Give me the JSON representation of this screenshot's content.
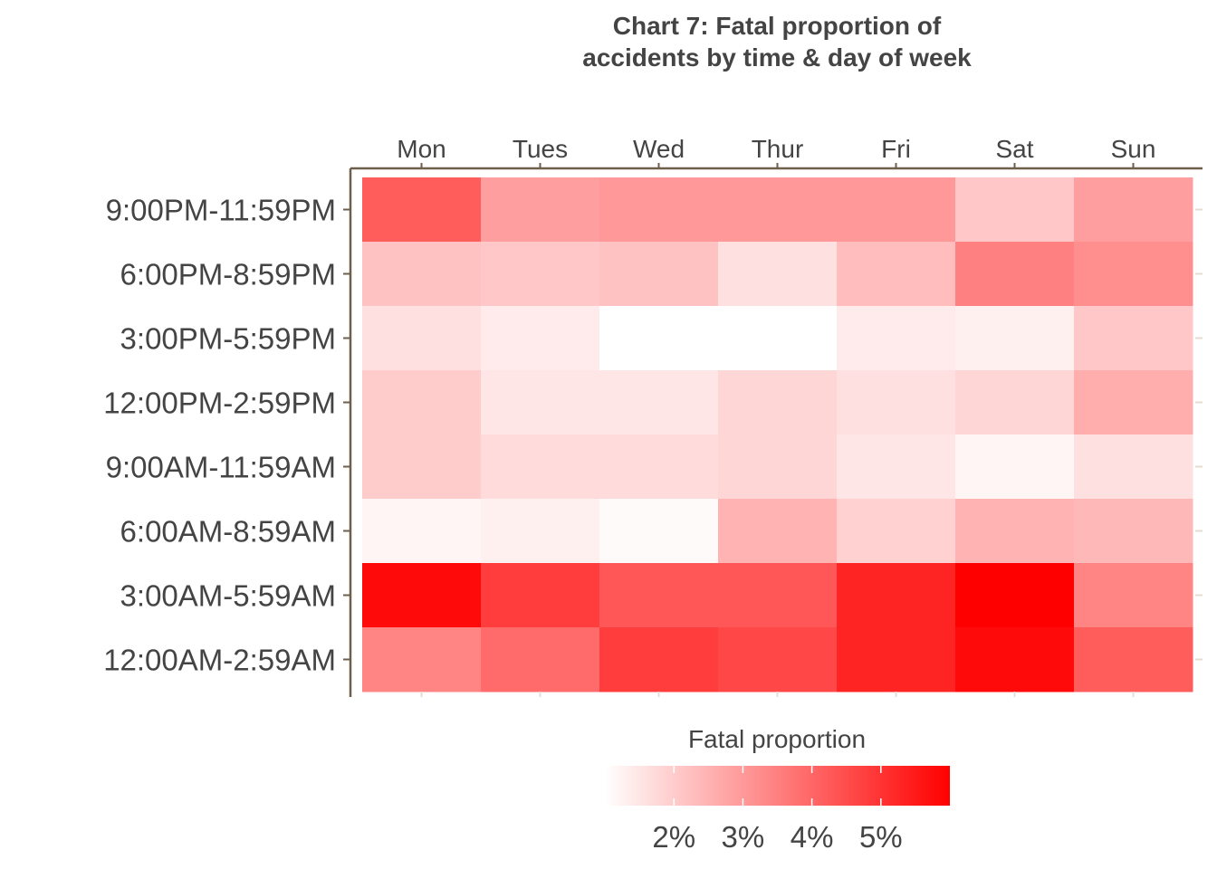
{
  "chart_data": {
    "type": "heatmap",
    "title_lines": [
      "Chart 7: Fatal proportion of",
      "accidents by time & day of week"
    ],
    "xlabel": "",
    "ylabel": "",
    "x_categories": [
      "Mon",
      "Tues",
      "Wed",
      "Thur",
      "Fri",
      "Sat",
      "Sun"
    ],
    "y_categories": [
      "9:00PM-11:59PM",
      "6:00PM-8:59PM",
      "3:00PM-5:59PM",
      "12:00PM-2:59PM",
      "9:00AM-11:59AM",
      "6:00AM-8:59AM",
      "3:00AM-5:59AM",
      "12:00AM-2:59AM"
    ],
    "values": [
      [
        4.2,
        2.9,
        3.0,
        3.0,
        3.0,
        2.1,
        2.9
      ],
      [
        2.2,
        2.1,
        2.2,
        1.6,
        2.3,
        3.5,
        3.2
      ],
      [
        1.6,
        1.4,
        1.0,
        1.0,
        1.4,
        1.3,
        2.1
      ],
      [
        2.0,
        1.5,
        1.5,
        1.8,
        1.6,
        1.8,
        2.6
      ],
      [
        2.0,
        1.7,
        1.7,
        1.8,
        1.5,
        1.2,
        1.6
      ],
      [
        1.2,
        1.3,
        1.1,
        2.5,
        1.9,
        2.5,
        2.4
      ],
      [
        5.8,
        4.8,
        4.3,
        4.3,
        5.3,
        6.0,
        3.4
      ],
      [
        3.4,
        3.9,
        4.8,
        4.6,
        5.3,
        5.8,
        4.2
      ]
    ],
    "color_scale": {
      "low": "#ffffff",
      "high": "#ff0000",
      "min": 1.0,
      "max": 6.0
    },
    "legend": {
      "title": "Fatal proportion",
      "ticks": [
        {
          "value": 2,
          "label": "2%"
        },
        {
          "value": 3,
          "label": "3%"
        },
        {
          "value": 4,
          "label": "4%"
        },
        {
          "value": 5,
          "label": "5%"
        }
      ],
      "placement": "bottom"
    },
    "grid": false
  }
}
